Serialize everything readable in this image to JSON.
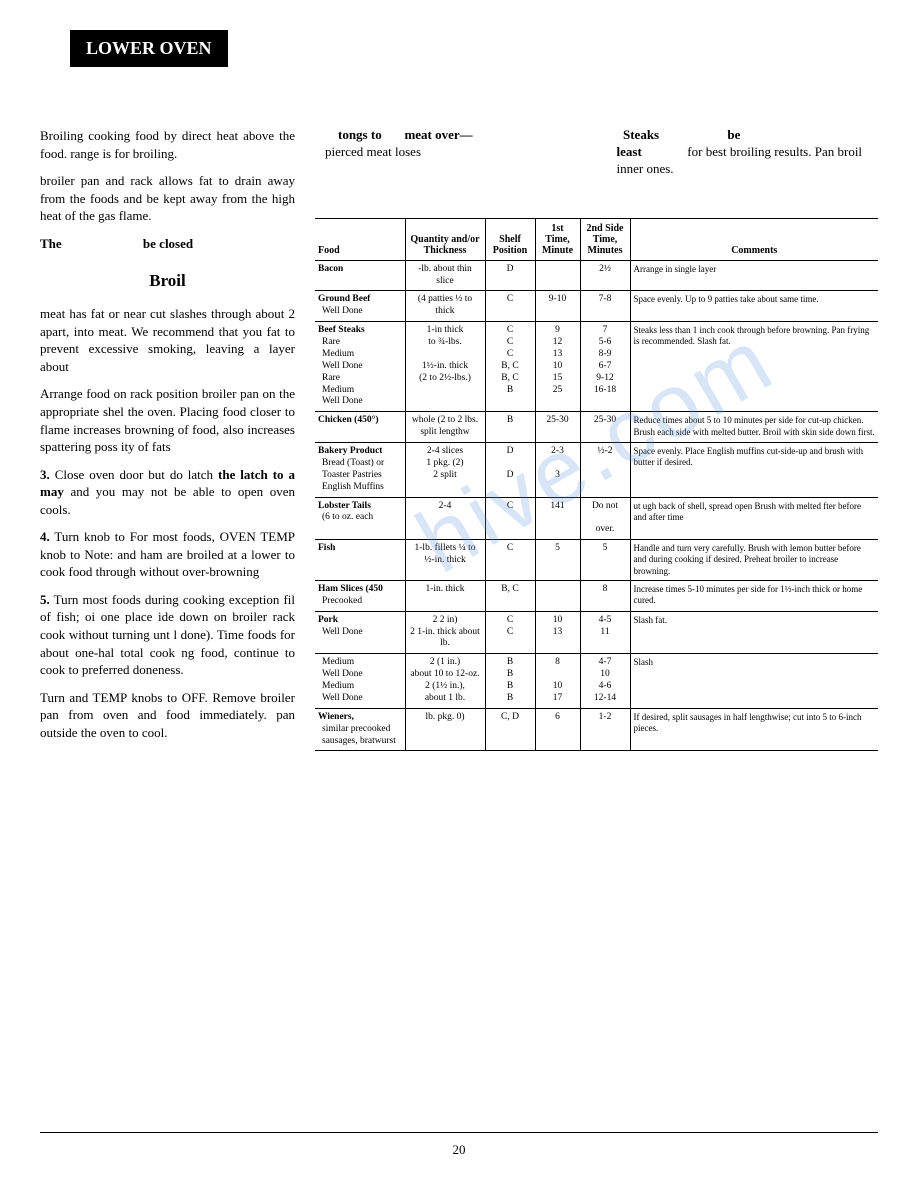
{
  "header": "LOWER OVEN",
  "page_number": "20",
  "left": {
    "p1": "Broiling cooking food by direct heat above the food. range is for broiling.",
    "p2": "broiler pan and rack allows fat to drain away from the foods and be kept away from the high heat of the gas flame.",
    "p3_a": "The",
    "p3_b": "be closed",
    "broil_head": "Broil",
    "p4": "meat has fat or near cut slashes through about 2 apart, into meat. We recommend that you fat to prevent excessive smoking, leaving a layer about",
    "p5": "Arrange food on rack position broiler pan on the appropriate shel the oven. Placing food closer to flame increases browning of food, also increases spattering poss ity of fats",
    "p6_a": "3.",
    "p6_b": "Close oven door but do latch",
    "p6_c": "the latch",
    "p6_d": "to a may",
    "p6_e": "and you may not be able to open oven cools.",
    "p7_a": "4.",
    "p7_b": "Turn knob to For most foods, OVEN TEMP knob to Note: and ham are broiled at a lower to cook food through without over-browning",
    "p8_a": "5.",
    "p8_b": "Turn most foods during cooking exception fil of fish; oi one place ide down on broiler rack cook without turning unt l done). Time foods for about one-hal total cook ng food, continue to cook to preferred doneness.",
    "p9": "Turn and TEMP knobs to OFF. Remove broiler pan from oven and food immediately. pan outside the oven to cool."
  },
  "notes": {
    "n1_a": "tongs to",
    "n1_b": "meat over—",
    "n1_c": "pierced meat loses",
    "n2_a": "Steaks",
    "n2_b": "be",
    "n2_c": "least",
    "n2_d": "for best broiling results. Pan broil inner ones."
  },
  "table": {
    "headers": [
      "Food",
      "Quantity and/or Thickness",
      "Shelf Position",
      "1st Time, Minute",
      "2nd Side Time, Minutes",
      "Comments"
    ],
    "rows": [
      {
        "food": "Bacon",
        "qty": "-lb. about thin slice",
        "shelf": "D",
        "t1": "",
        "t2": "2½",
        "comments": "Arrange in single layer"
      },
      {
        "food": "Ground Beef",
        "sub": "Well Done",
        "qty": "(4 patties ½ to thick",
        "shelf": "C",
        "t1": "9-10",
        "t2": "7-8",
        "comments": "Space evenly. Up to 9 patties take about same time.",
        "sep": true
      },
      {
        "food": "Beef Steaks",
        "sub": "Rare\nMedium\nWell Done\nRare\nMedium\nWell Done",
        "qty": "1-in thick\nto ¾-lbs.\n\n1½-in. thick\n(2 to 2½-lbs.)",
        "shelf": "C\nC\nC\nB, C\nB, C\nB",
        "t1": "9\n12\n13\n10\n15\n25",
        "t2": "7\n5-6\n8-9\n6-7\n9-12\n16-18",
        "comments": "Steaks less than 1 inch cook through before browning. Pan frying is recommended. Slash fat.",
        "sep": true
      },
      {
        "food": "Chicken (450°)",
        "qty": "whole (2 to 2 lbs. split lengthw",
        "shelf": "B",
        "t1": "25-30",
        "t2": "25-30",
        "comments": "Reduce times about 5 to 10 minutes per side for cut-up chicken. Brush each side with melted butter. Broil with skin side down first.",
        "sep": true
      },
      {
        "food": "Bakery Product",
        "sub": "Bread (Toast) or\nToaster Pastries\nEnglish Muffins",
        "qty": "2-4 slices\n1 pkg. (2)\n2 split",
        "shelf": "D\n\nD",
        "t1": "2-3\n\n3",
        "t2": "½-2",
        "comments": "Space evenly. Place English muffins cut-side-up and brush with butter if desired.",
        "sep": true
      },
      {
        "food": "Lobster Tails",
        "sub": "(6 to oz. each",
        "qty": "2-4",
        "shelf": "C",
        "t1": "141",
        "t2": "Do not\n\nover.",
        "comments": "ut ugh back of shell, spread open Brush with melted fter before and after time",
        "sep": true
      },
      {
        "food": "Fish",
        "qty": "1-lb. fillets ¼ to ½-in. thick",
        "shelf": "C",
        "t1": "5",
        "t2": "5",
        "comments": "Handle and turn very carefully. Brush with lemon butter before and during cooking if desired. Preheat broiler to increase browning.",
        "sep": true
      },
      {
        "food": "Ham Slices (450",
        "sub": "Precooked",
        "qty": "1-in. thick",
        "shelf": "B, C",
        "t1": "",
        "t2": "8",
        "comments": "Increase times 5-10 minutes per side for 1½-inch thick or home cured.",
        "sep": true
      },
      {
        "food": "Pork",
        "sub": "Well Done",
        "qty": "2 2 in)\n2 1-in. thick about lb.",
        "shelf": "C\nC",
        "t1": "10\n13",
        "t2": "4-5\n11",
        "comments": "Slash fat.",
        "sep": true
      },
      {
        "food": "",
        "sub": "Medium\nWell Done\nMedium\nWell Done",
        "qty": "2 (1 in.)\nabout 10 to 12-oz.\n2 (1½ in.),\nabout 1 lb.",
        "shelf": "B\nB\nB\nB",
        "t1": "8\n\n10\n17",
        "t2": "4-7\n10\n4-6\n12-14",
        "comments": "Slash",
        "sep": true
      },
      {
        "food": "Wieners,",
        "sub": "similar precooked sausages, bratwurst",
        "qty": "lb. pkg. 0)",
        "shelf": "C, D",
        "t1": "6",
        "t2": "1-2",
        "comments": "If desired, split sausages in half lengthwise; cut into 5 to 6-inch pieces.",
        "sep": true,
        "last": true
      }
    ]
  }
}
